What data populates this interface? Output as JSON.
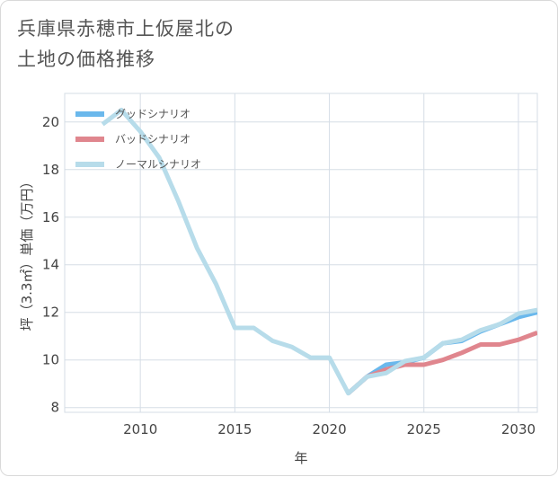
{
  "header": {
    "title_line1": "兵庫県赤穂市上仮屋北の",
    "title_line2": "土地の価格推移"
  },
  "colors": {
    "good": "#6ab8ec",
    "bad": "#e0868e",
    "normal": "#b7dcea",
    "grid": "#d5dde6",
    "axis": "#444444"
  },
  "chart_data": {
    "type": "line",
    "title": "兵庫県赤穂市上仮屋北の土地の価格推移",
    "xlabel": "年",
    "ylabel": "坪（3.3㎡）単価（万円）",
    "xlim": [
      2006,
      2031
    ],
    "ylim": [
      7.8,
      21.2
    ],
    "xticks": [
      2010,
      2015,
      2020,
      2025,
      2030
    ],
    "yticks": [
      8,
      10,
      12,
      14,
      16,
      18,
      20
    ],
    "xtick_labels": [
      "2010",
      "2015",
      "2020",
      "2025",
      "2030"
    ],
    "ytick_labels": [
      "8",
      "10",
      "12",
      "14",
      "16",
      "18",
      "20"
    ],
    "legend_position": "top-left",
    "series": [
      {
        "key": "good",
        "name": "グッドシナリオ",
        "x": [
          2021,
          2022,
          2023,
          2024,
          2025,
          2026,
          2027,
          2028,
          2029,
          2030,
          2031
        ],
        "values": [
          8.6,
          9.3,
          9.8,
          9.9,
          10.1,
          10.7,
          10.8,
          11.2,
          11.5,
          11.8,
          12.0
        ]
      },
      {
        "key": "bad",
        "name": "バッドシナリオ",
        "x": [
          2021,
          2022,
          2023,
          2024,
          2025,
          2026,
          2027,
          2028,
          2029,
          2030,
          2031
        ],
        "values": [
          8.6,
          9.3,
          9.6,
          9.8,
          9.8,
          10.0,
          10.3,
          10.65,
          10.65,
          10.85,
          11.15
        ]
      },
      {
        "key": "normal",
        "name": "ノーマルシナリオ",
        "x": [
          2008,
          2009,
          2010,
          2011,
          2012,
          2013,
          2014,
          2015,
          2016,
          2017,
          2018,
          2019,
          2020,
          2021,
          2022,
          2023,
          2024,
          2025,
          2026,
          2027,
          2028,
          2029,
          2030,
          2031
        ],
        "values": [
          19.9,
          20.5,
          19.6,
          18.5,
          16.7,
          14.7,
          13.2,
          11.35,
          11.35,
          10.8,
          10.55,
          10.1,
          10.1,
          8.6,
          9.3,
          9.45,
          9.95,
          10.1,
          10.7,
          10.85,
          11.25,
          11.5,
          11.95,
          12.1
        ]
      }
    ]
  }
}
